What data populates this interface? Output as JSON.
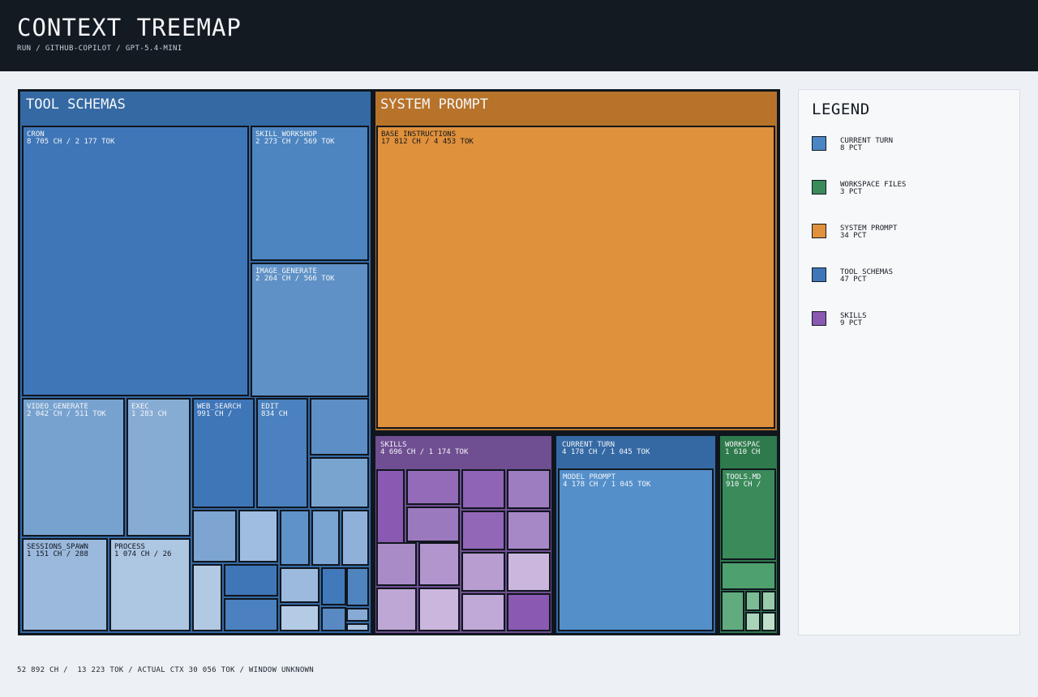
{
  "header": {
    "title": "CONTEXT TREEMAP",
    "subtitle": "RUN / GITHUB-COPILOT / GPT-5.4-MINI"
  },
  "legend": {
    "title": "LEGEND",
    "items": [
      {
        "label": "CURRENT TURN",
        "pct": "8 PCT",
        "color": "#4a86c4"
      },
      {
        "label": "WORKSPACE FILES",
        "pct": "3 PCT",
        "color": "#3a8a5a"
      },
      {
        "label": "SYSTEM PROMPT",
        "pct": "34 PCT",
        "color": "#e0913b"
      },
      {
        "label": "TOOL SCHEMAS",
        "pct": "47 PCT",
        "color": "#3f76b8"
      },
      {
        "label": "SKILLS",
        "pct": "9 PCT",
        "color": "#8a5ab2"
      }
    ]
  },
  "footer": {
    "text": "52 892 CH /  13 223 TOK / ACTUAL CTX 30 056 TOK / WINDOW UNKNOWN"
  },
  "chart_data": {
    "type": "treemap",
    "groups": [
      {
        "name": "TOOL SCHEMAS",
        "color": "#3f76b8",
        "children": [
          {
            "label": "CRON",
            "value_text": "8 705 CH / 2 177 TOK",
            "chars": 8705
          },
          {
            "label": "SKILL_WORKSHOP",
            "value_text": "2 273 CH / 569 TOK",
            "chars": 2273
          },
          {
            "label": "IMAGE_GENERATE",
            "value_text": "2 264 CH / 566 TOK",
            "chars": 2264
          },
          {
            "label": "VIDEO_GENERATE",
            "value_text": "2 042 CH / 511 TOK",
            "chars": 2042
          },
          {
            "label": "EXEC",
            "value_text": "1 283 CH",
            "chars": 1283
          },
          {
            "label": "WEB_SEARCH",
            "value_text": "991 CH /",
            "chars": 991
          },
          {
            "label": "EDIT",
            "value_text": "834 CH",
            "chars": 834
          },
          {
            "label": "SESSIONS_SPAWN",
            "value_text": "1 151 CH / 288",
            "chars": 1151
          },
          {
            "label": "PROCESS",
            "value_text": "1 074 CH / 26",
            "chars": 1074
          }
        ]
      },
      {
        "name": "SYSTEM PROMPT",
        "color": "#e0913b",
        "children": [
          {
            "label": "BASE INSTRUCTIONS",
            "value_text": "17 812 CH / 4 453 TOK",
            "chars": 17812
          }
        ]
      },
      {
        "name": "SKILLS",
        "header_value": "4 696 CH / 1 174 TOK",
        "color": "#8a5ab2",
        "children": []
      },
      {
        "name": "CURRENT TURN",
        "header_value": "4 178 CH / 1 045 TOK",
        "color": "#4a86c4",
        "children": [
          {
            "label": "MODEL PROMPT",
            "value_text": "4 178 CH / 1 045 TOK",
            "chars": 4178
          }
        ]
      },
      {
        "name": "WORKSPAC",
        "header_value": "1 610 CH",
        "color": "#3a8a5a",
        "children": [
          {
            "label": "TOOLS.MD",
            "value_text": "910 CH /",
            "chars": 910
          }
        ]
      }
    ]
  }
}
